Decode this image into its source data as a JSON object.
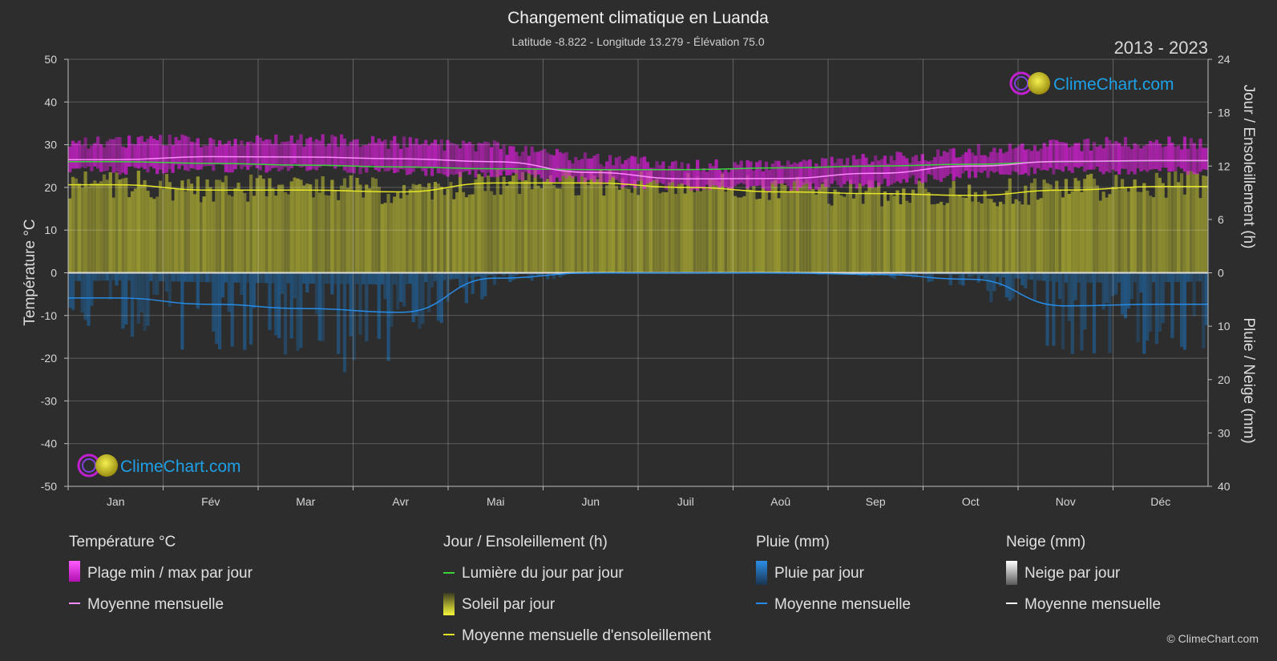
{
  "header": {
    "title": "Changement climatique en Luanda",
    "subtitle": "Latitude -8.822 - Longitude 13.279 - Élévation 75.0",
    "period": "2013 - 2023"
  },
  "brand": {
    "name": "ClimeChart.com",
    "copyright": "© ClimeChart.com"
  },
  "colors": {
    "background": "#2d2d2d",
    "temp_range": "#d21ed2",
    "temp_mean": "#ff8cff",
    "daylight": "#3cd23c",
    "sunshine_fill": "#a0a032",
    "sunshine_mean": "#e6e628",
    "rain_fill": "#1e64a0",
    "rain_mean": "#288ce6",
    "snow_mean": "#ffffff"
  },
  "legend": {
    "groups": [
      {
        "heading": "Température °C",
        "items": [
          {
            "label": "Plage min / max par jour",
            "kind": "swatch",
            "icon": "temp-range-swatch"
          },
          {
            "label": "Moyenne mensuelle",
            "kind": "line",
            "icon": "temp-mean-line"
          }
        ]
      },
      {
        "heading": "Jour / Ensoleillement (h)",
        "items": [
          {
            "label": "Lumière du jour par jour",
            "kind": "line",
            "icon": "daylight-line"
          },
          {
            "label": "Soleil par jour",
            "kind": "swatch",
            "icon": "sunshine-swatch"
          },
          {
            "label": "Moyenne mensuelle d'ensoleillement",
            "kind": "line",
            "icon": "sunshine-mean-line"
          }
        ]
      },
      {
        "heading": "Pluie (mm)",
        "items": [
          {
            "label": "Pluie par jour",
            "kind": "swatch",
            "icon": "rain-swatch"
          },
          {
            "label": "Moyenne mensuelle",
            "kind": "line",
            "icon": "rain-mean-line"
          }
        ]
      },
      {
        "heading": "Neige (mm)",
        "items": [
          {
            "label": "Neige par jour",
            "kind": "swatch",
            "icon": "snow-swatch"
          },
          {
            "label": "Moyenne mensuelle",
            "kind": "line",
            "icon": "snow-mean-line"
          }
        ]
      }
    ]
  },
  "chart_data": {
    "type": "area",
    "title": "Changement climatique en Luanda",
    "grid": true,
    "categories": [
      "Jan",
      "Fév",
      "Mar",
      "Avr",
      "Mai",
      "Jun",
      "Juil",
      "Aoû",
      "Sep",
      "Oct",
      "Nov",
      "Déc"
    ],
    "axes": {
      "left": {
        "label": "Température °C",
        "range": [
          -50,
          50
        ],
        "ticks": [
          50,
          40,
          30,
          20,
          10,
          0,
          -10,
          -20,
          -30,
          -40,
          -50
        ]
      },
      "right_top": {
        "label": "Jour / Ensoleillement (h)",
        "range": [
          0,
          24
        ],
        "ticks": [
          24,
          18,
          12,
          6,
          0
        ]
      },
      "right_bottom": {
        "label": "Pluie / Neige (mm)",
        "range": [
          0,
          40
        ],
        "ticks": [
          10,
          20,
          30,
          40
        ]
      }
    },
    "series": [
      {
        "name": "Plage min / max par jour",
        "unit": "°C",
        "min": [
          24,
          24.5,
          24.5,
          24,
          23,
          21.5,
          20,
          20,
          21,
          23,
          24,
          24
        ],
        "max": [
          30.5,
          31,
          31,
          30.5,
          29.5,
          26.5,
          25,
          25,
          26.5,
          28.5,
          30,
          30.5
        ]
      },
      {
        "name": "Moyenne mensuelle",
        "unit": "°C",
        "values": [
          26.5,
          27.2,
          27.1,
          26.7,
          26.0,
          23.5,
          22.0,
          22.1,
          23.3,
          25.0,
          26.1,
          26.3
        ]
      },
      {
        "name": "Lumière du jour par jour",
        "unit": "h",
        "values": [
          12.5,
          12.3,
          12.1,
          11.9,
          11.7,
          11.6,
          11.6,
          11.8,
          12.0,
          12.2,
          12.5,
          12.6
        ]
      },
      {
        "name": "Moyenne mensuelle d'ensoleillement",
        "unit": "h",
        "values": [
          9.9,
          9.3,
          9.3,
          9.1,
          10.1,
          10.1,
          9.6,
          9.1,
          8.9,
          8.7,
          9.3,
          9.7
        ]
      },
      {
        "name": "Moyenne mensuelle",
        "unit": "mm",
        "values": [
          4.7,
          5.9,
          6.7,
          7.4,
          1.0,
          0.05,
          0.0,
          0.05,
          0.3,
          1.2,
          6.2,
          5.9
        ]
      },
      {
        "name": "Moyenne mensuelle",
        "unit": "mm (neige)",
        "values": [
          0,
          0,
          0,
          0,
          0,
          0,
          0,
          0,
          0,
          0,
          0,
          0
        ]
      }
    ]
  }
}
